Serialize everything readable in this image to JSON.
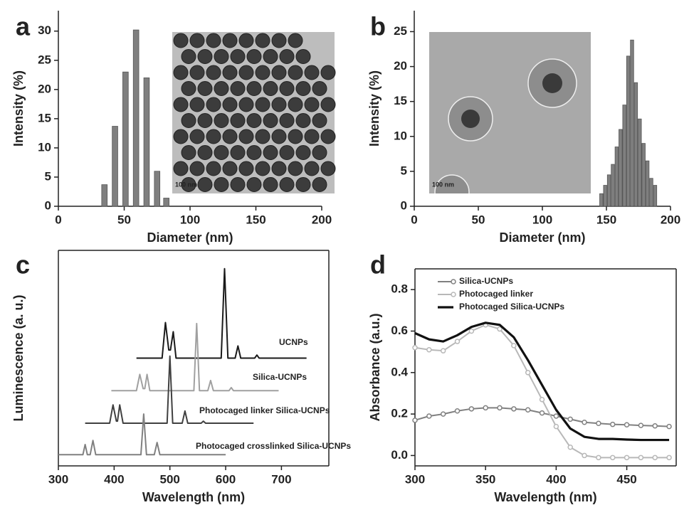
{
  "chart_data": [
    {
      "type": "bar",
      "panel_label": "a",
      "xlabel": "Diameter (nm)",
      "ylabel": "Intensity (%)",
      "inset_label": "100 nm",
      "x": [
        35,
        43,
        51,
        59,
        67,
        75,
        82
      ],
      "values": [
        3.7,
        13.7,
        23,
        30.2,
        22,
        6,
        1.4
      ],
      "color": "#7f7f7f",
      "xlim": [
        0,
        200
      ],
      "ylim": [
        0,
        33.5
      ],
      "xticks": [
        0,
        50,
        100,
        150,
        200
      ],
      "yticks": [
        0,
        5,
        10,
        15,
        20,
        25,
        30
      ]
    },
    {
      "type": "bar",
      "panel_label": "b",
      "xlabel": "Diameter (nm)",
      "ylabel": "Intensity (%)",
      "inset_label": "100 nm",
      "x": [
        146,
        149,
        152,
        155,
        158,
        161,
        164,
        167,
        170,
        173,
        176,
        179,
        182,
        185,
        188
      ],
      "values": [
        1.8,
        3,
        4.5,
        6,
        8.5,
        11,
        14.5,
        21.5,
        23.8,
        17.7,
        12.5,
        9,
        6.5,
        4,
        3
      ],
      "color": "#7f7f7f",
      "xlim": [
        0,
        200
      ],
      "ylim": [
        0,
        28
      ],
      "xticks": [
        0,
        50,
        100,
        150,
        200
      ],
      "yticks": [
        0,
        5,
        10,
        15,
        20,
        25
      ]
    },
    {
      "type": "line",
      "panel_label": "c",
      "xlabel": "Wavelength (nm)",
      "ylabel": "Luminescence (a. u.)",
      "xlim": [
        300,
        785
      ],
      "ylim": [
        -0.5,
        10.1
      ],
      "xticks": [
        300,
        400,
        500,
        600,
        700
      ],
      "series": [
        {
          "name": "UCNPs",
          "color": "#1a1a1a",
          "x": [
            440,
            486,
            492,
            498,
            501,
            506,
            511,
            592,
            598,
            604,
            617,
            622,
            627,
            652,
            656,
            660,
            745
          ],
          "values": [
            4.8,
            4.8,
            6.55,
            5.2,
            5.2,
            6.1,
            4.8,
            4.8,
            9.2,
            4.8,
            4.8,
            5.4,
            4.8,
            4.8,
            4.95,
            4.8,
            4.8
          ]
        },
        {
          "name": "Silica-UCNPs",
          "color": "#a0a0a0",
          "x": [
            395,
            440,
            446,
            452,
            455,
            459,
            464,
            543,
            548,
            553,
            568,
            573,
            578,
            606,
            610,
            614,
            695
          ],
          "values": [
            3.2,
            3.2,
            4.0,
            3.3,
            3.3,
            4.0,
            3.2,
            3.2,
            6.5,
            3.2,
            3.2,
            3.7,
            3.2,
            3.2,
            3.35,
            3.2,
            3.2
          ]
        },
        {
          "name": "Photocaged linker Silica-UCNPs",
          "color": "#404040",
          "x": [
            348,
            392,
            398,
            404,
            406,
            410,
            416,
            495,
            500,
            505,
            522,
            527,
            532,
            556,
            560,
            564,
            650
          ],
          "values": [
            1.6,
            1.6,
            2.5,
            1.7,
            1.7,
            2.5,
            1.6,
            1.6,
            4.9,
            1.6,
            1.6,
            2.2,
            1.6,
            1.6,
            1.7,
            1.6,
            1.6
          ]
        },
        {
          "name": "Photocaged crosslinked Silica-UCNPs",
          "color": "#808080",
          "x": [
            300,
            344,
            348,
            352,
            357,
            362,
            367,
            448,
            453,
            458,
            472,
            477,
            482,
            600
          ],
          "values": [
            0.05,
            0.05,
            0.55,
            0.05,
            0.05,
            0.75,
            0.05,
            0.05,
            2.05,
            0.05,
            0.05,
            0.65,
            0.05,
            0.05
          ]
        }
      ]
    },
    {
      "type": "line",
      "panel_label": "d",
      "xlabel": "Wavelength (nm)",
      "ylabel": "Absorbance (a.u.)",
      "xlim": [
        300,
        485
      ],
      "ylim": [
        -0.05,
        0.9
      ],
      "xticks": [
        300,
        350,
        400,
        450
      ],
      "yticks": [
        {
          "value": 0,
          "label": "0.0"
        },
        0.2,
        0.4,
        0.6,
        0.8
      ],
      "legend": "upper left",
      "x": [
        300,
        310,
        320,
        330,
        340,
        350,
        360,
        370,
        380,
        390,
        400,
        410,
        420,
        430,
        440,
        450,
        460,
        470,
        480
      ],
      "series": [
        {
          "name": "Silica-UCNPs",
          "color": "#808080",
          "marker": "o",
          "values": [
            0.17,
            0.19,
            0.2,
            0.215,
            0.225,
            0.23,
            0.23,
            0.225,
            0.22,
            0.205,
            0.19,
            0.175,
            0.16,
            0.155,
            0.15,
            0.148,
            0.145,
            0.143,
            0.14
          ]
        },
        {
          "name": "Photocaged linker",
          "color": "#b8b8b8",
          "marker": "o",
          "values": [
            0.52,
            0.51,
            0.505,
            0.55,
            0.6,
            0.63,
            0.61,
            0.53,
            0.4,
            0.27,
            0.14,
            0.04,
            0.0,
            -0.01,
            -0.01,
            -0.01,
            -0.01,
            -0.01,
            -0.01
          ]
        },
        {
          "name": "Photocaged Silica-UCNPs",
          "color": "#111111",
          "values": [
            0.59,
            0.56,
            0.55,
            0.58,
            0.62,
            0.64,
            0.63,
            0.57,
            0.46,
            0.34,
            0.22,
            0.13,
            0.09,
            0.08,
            0.08,
            0.077,
            0.075,
            0.075,
            0.075
          ]
        }
      ]
    }
  ]
}
